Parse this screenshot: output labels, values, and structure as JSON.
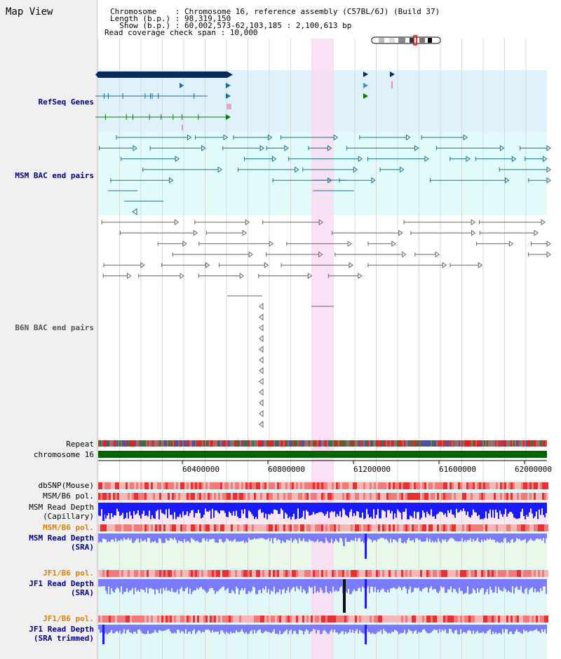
{
  "panel_title": "Map View",
  "header": {
    "chromosome_line": "Chromosome    : Chromosome 16, reference assembly (C57BL/6J) (Build 37)",
    "length_line": "Length (b.p.) : 98,319,150",
    "show_line": "  Show (b.p.) : 60,002,573-62,103,185 : 2,100,613 bp",
    "coverage_line": "Read coverage check span : 10,000"
  },
  "tracks": {
    "refseq": "RefSeq Genes",
    "msm_bac": "MSM BAC end pairs",
    "b6n_bac": "B6N BAC end pairs",
    "repeat": "Repeat",
    "chromosome": "chromosome 16",
    "dbsnp": "dbSNP(Mouse)",
    "msm_pol": "MSM/B6 pol.",
    "msm_cap_1": "MSM Read Depth",
    "msm_cap_2": "(Capillary)",
    "msm_pol2": "MSM/B6 pol.",
    "msm_sra_1": "MSM Read Depth",
    "msm_sra_2": "(SRA)",
    "jf1_pol": "JF1/B6 pol.",
    "jf1_sra_1": "JF1 Read Depth",
    "jf1_sra_2": "(SRA)",
    "jf1_pol2": "JF1/B6 pol.",
    "jf1_trim_1": "JF1 Read Depth",
    "jf1_trim_2": "(SRA trimmed)"
  },
  "axis_ticks": [
    "60400000",
    "60800000",
    "61200000",
    "61600000",
    "62000000"
  ],
  "colors": {
    "refseq_bg": "#dff2fb",
    "msm_bac_bg": "#e1fbfb",
    "highlight": "#f9dcf3",
    "gene_dark": "#0b2a5c",
    "gene_green": "#0a7a0a",
    "chromosome_bar": "#006400",
    "depth_blue": "#1a1aff",
    "depth_light": "#7b7bff",
    "pol_red": "#e83030"
  }
}
